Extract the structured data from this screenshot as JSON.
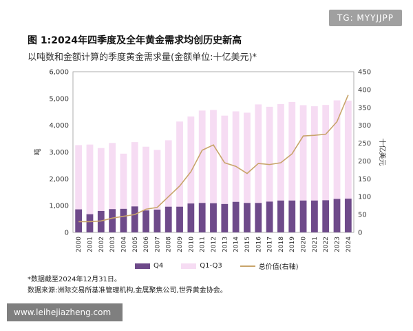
{
  "watermark_top": "TG: MYYJJPP",
  "watermark_bottom": "www.leihejiazheng.com",
  "title": "图 1:2024年四季度及全年黄金需求均创历史新高",
  "subtitle": "以吨数和金额计算的季度黄金需求量(金额单位:十亿美元)*",
  "footnote": "*数据截至2024年12月31日。",
  "source": "数据来源:洲际交易所基准管理机构,金属聚焦公司,世界黄金协会。",
  "colors": {
    "q4": "#6e4a8a",
    "q1q3": "#f6dcf3",
    "total_value": "#c8a46a",
    "axis": "#666666",
    "grid": "#e6e6e6"
  },
  "chart_data": {
    "type": "bar",
    "stacked": true,
    "categories": [
      "2000",
      "2001",
      "2002",
      "2003",
      "2004",
      "2005",
      "2006",
      "2007",
      "2008",
      "2009",
      "2010",
      "2011",
      "2012",
      "2013",
      "2014",
      "2015",
      "2016",
      "2017",
      "2018",
      "2019",
      "2020",
      "2021",
      "2022",
      "2023",
      "2024"
    ],
    "series": [
      {
        "name": "Q4",
        "axis": "left",
        "values": [
          860,
          680,
          800,
          870,
          880,
          970,
          820,
          850,
          960,
          960,
          1080,
          1100,
          1090,
          1060,
          1140,
          1100,
          1100,
          1150,
          1190,
          1190,
          1190,
          1190,
          1200,
          1250,
          1260
        ]
      },
      {
        "name": "Q1-Q3",
        "axis": "left",
        "values": [
          2400,
          2600,
          2350,
          2470,
          2060,
          2400,
          2380,
          2230,
          2480,
          3180,
          3250,
          3450,
          3480,
          3300,
          3380,
          3370,
          3680,
          3540,
          3600,
          3680,
          3560,
          3520,
          3560,
          3680,
          3660
        ]
      },
      {
        "name": "总价值(右轴)",
        "type": "line",
        "axis": "right",
        "values": [
          30,
          30,
          32,
          40,
          45,
          50,
          65,
          70,
          100,
          130,
          170,
          230,
          245,
          195,
          185,
          165,
          193,
          190,
          195,
          220,
          270,
          272,
          275,
          310,
          385
        ]
      }
    ],
    "ylabel": "吨",
    "y2label": "十亿美元",
    "ylim": [
      0,
      6000
    ],
    "y2lim": [
      0,
      450
    ],
    "yticks": [
      "0",
      "1,000",
      "2,000",
      "3,000",
      "4,000",
      "5,000",
      "6,000"
    ],
    "y2ticks": [
      "0",
      "50",
      "100",
      "150",
      "200",
      "250",
      "300",
      "350",
      "400",
      "450"
    ],
    "legend": [
      "Q4",
      "Q1-Q3",
      "总价值(右轴)"
    ],
    "legend_position": "bottom",
    "grid": false
  }
}
